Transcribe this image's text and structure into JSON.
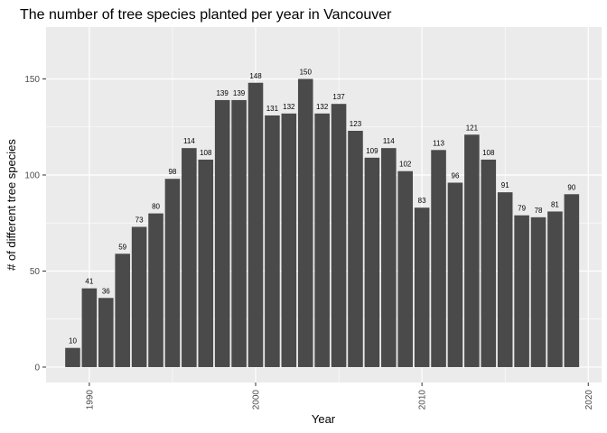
{
  "chart_data": {
    "type": "bar",
    "title": "The number of tree species planted per year in Vancouver",
    "xlabel": "Year",
    "ylabel": "# of different tree species",
    "x": [
      1989,
      1990,
      1991,
      1992,
      1993,
      1994,
      1995,
      1996,
      1997,
      1998,
      1999,
      2000,
      2001,
      2002,
      2003,
      2004,
      2005,
      2006,
      2007,
      2008,
      2009,
      2010,
      2011,
      2012,
      2013,
      2014,
      2015,
      2016,
      2017,
      2018,
      2019
    ],
    "values": [
      10,
      41,
      36,
      59,
      73,
      80,
      98,
      114,
      108,
      139,
      139,
      148,
      131,
      132,
      150,
      132,
      137,
      123,
      109,
      114,
      102,
      83,
      113,
      96,
      121,
      108,
      91,
      79,
      78,
      81,
      90
    ],
    "data_labels": [
      "10",
      "41",
      "36",
      "59",
      "73",
      "80",
      "98",
      "114",
      "108",
      "139",
      "139",
      "148",
      "131",
      "132",
      "150",
      "132",
      "137",
      "123",
      "109",
      "114",
      "102",
      "83",
      "113",
      "96",
      "121",
      "108",
      "91",
      "79",
      "78",
      "81",
      "90"
    ],
    "xlim": [
      1987.4,
      2020.8
    ],
    "ylim": [
      -8,
      177
    ],
    "x_ticks": [
      1990,
      2000,
      2010,
      2020
    ],
    "x_tick_labels": [
      "1990",
      "2000",
      "2010",
      "2020"
    ],
    "y_ticks": [
      0,
      50,
      100,
      150
    ],
    "y_tick_labels": [
      "0",
      "50",
      "100",
      "150"
    ],
    "grid": true,
    "colors": {
      "panel_background": "#ebebeb",
      "grid_major": "#ffffff",
      "bar_fill": "#4a4a4a"
    }
  }
}
